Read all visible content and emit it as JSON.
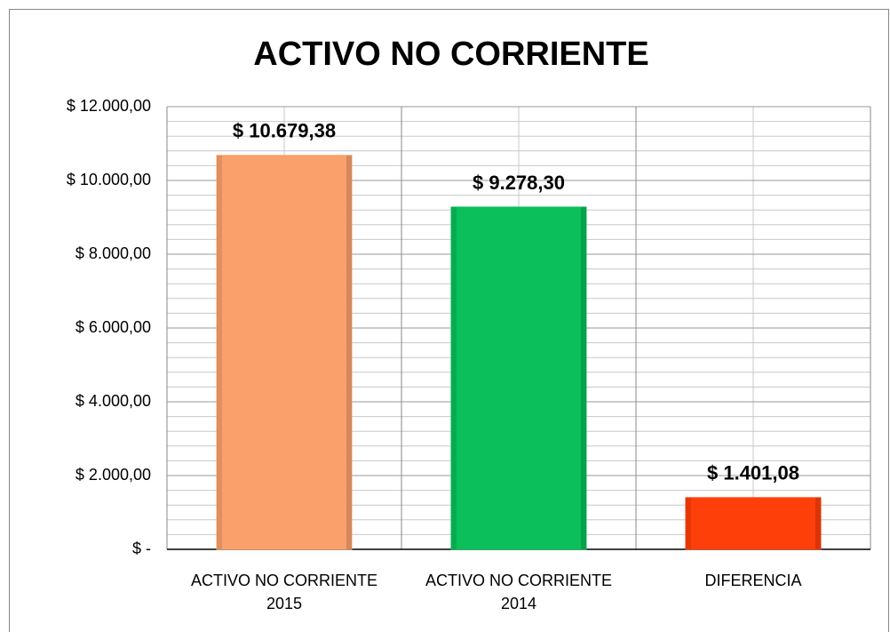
{
  "chart_data": {
    "type": "bar",
    "title": "ACTIVO NO CORRIENTE",
    "categories": [
      "ACTIVO NO CORRIENTE 2015",
      "ACTIVO NO CORRIENTE 2014",
      "DIFERENCIA"
    ],
    "values": [
      10679.38,
      9278.3,
      1401.08
    ],
    "value_labels": [
      "$ 10.679,38",
      "$ 9.278,30",
      "$ 1.401,08"
    ],
    "colors": [
      "#f9a06b",
      "#0bbf5a",
      "#ff3f0a"
    ],
    "ylim": [
      0,
      12000
    ],
    "yticks": [
      {
        "value": 0,
        "label": "$ -"
      },
      {
        "value": 2000,
        "label": "$ 2.000,00"
      },
      {
        "value": 4000,
        "label": "$ 4.000,00"
      },
      {
        "value": 6000,
        "label": "$ 6.000,00"
      },
      {
        "value": 8000,
        "label": "$ 8.000,00"
      },
      {
        "value": 10000,
        "label": "$ 10.000,00"
      },
      {
        "value": 12000,
        "label": "$ 12.000,00"
      }
    ],
    "grid": true
  }
}
